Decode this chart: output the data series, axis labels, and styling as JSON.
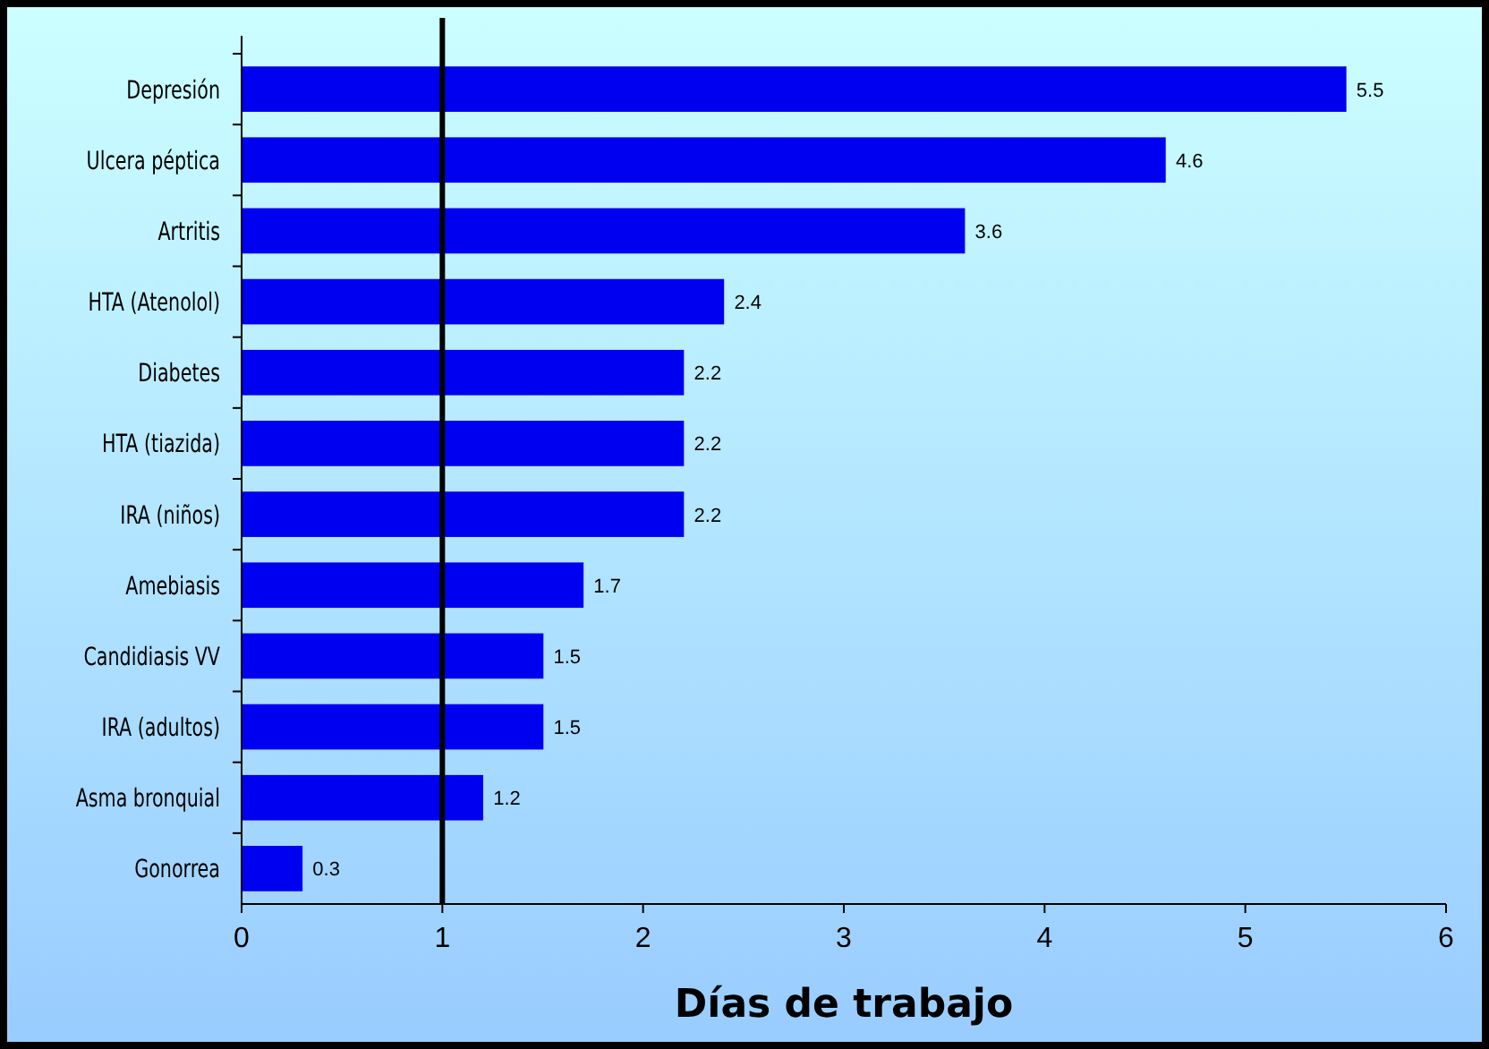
{
  "chart_data": {
    "type": "bar",
    "orientation": "horizontal",
    "xlabel": "Días de trabajo",
    "categories": [
      "Depresión",
      "Ulcera péptica",
      "Artritis",
      "HTA (Atenolol)",
      "Diabetes",
      "HTA (tiazida)",
      "IRA (niños)",
      "Amebiasis",
      "Candidiasis VV",
      "IRA (adultos)",
      "Asma bronquial",
      "Gonorrea"
    ],
    "values": [
      5.5,
      4.6,
      3.6,
      2.4,
      2.2,
      2.2,
      2.2,
      1.7,
      1.5,
      1.5,
      1.2,
      0.3
    ],
    "color": "#0000f0",
    "data_labels": true,
    "xlim": [
      0,
      6
    ],
    "xticks": [
      0,
      1,
      2,
      3,
      4,
      5,
      6
    ],
    "grid": false,
    "ref_lines": [
      {
        "axis": "x",
        "value": 1,
        "color": "#000000"
      }
    ]
  }
}
